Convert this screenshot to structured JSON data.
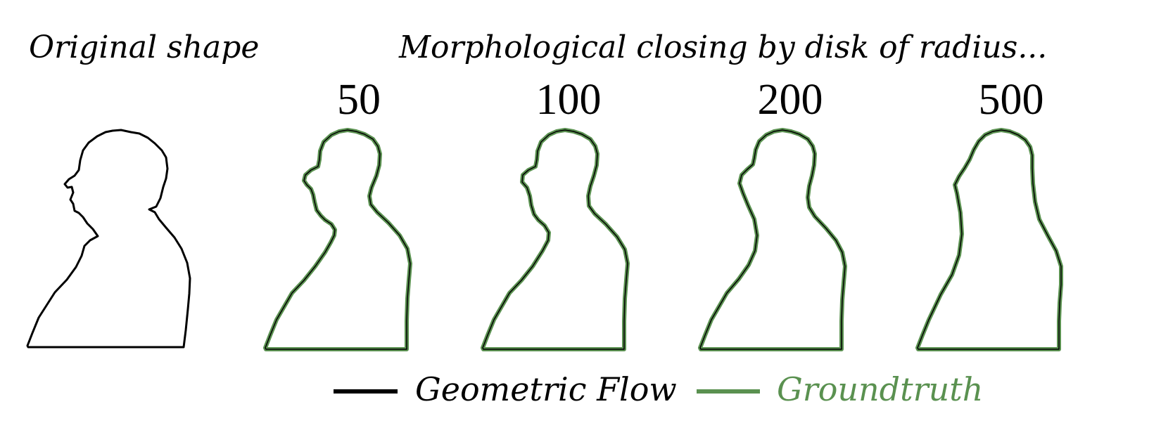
{
  "header": {
    "original_label": "Original shape",
    "closing_label": "Morphological closing by disk of radius..."
  },
  "panels": [
    {
      "radius_label": "50"
    },
    {
      "radius_label": "100"
    },
    {
      "radius_label": "200"
    },
    {
      "radius_label": "500"
    }
  ],
  "legend": {
    "items": [
      {
        "label": "Geometric Flow",
        "color": "#000000"
      },
      {
        "label": "Groundtruth",
        "color": "#5a9150"
      }
    ]
  },
  "colors": {
    "outline_original": "#000000",
    "outline_flow": "#000000",
    "outline_groundtruth": "#5a9150"
  }
}
